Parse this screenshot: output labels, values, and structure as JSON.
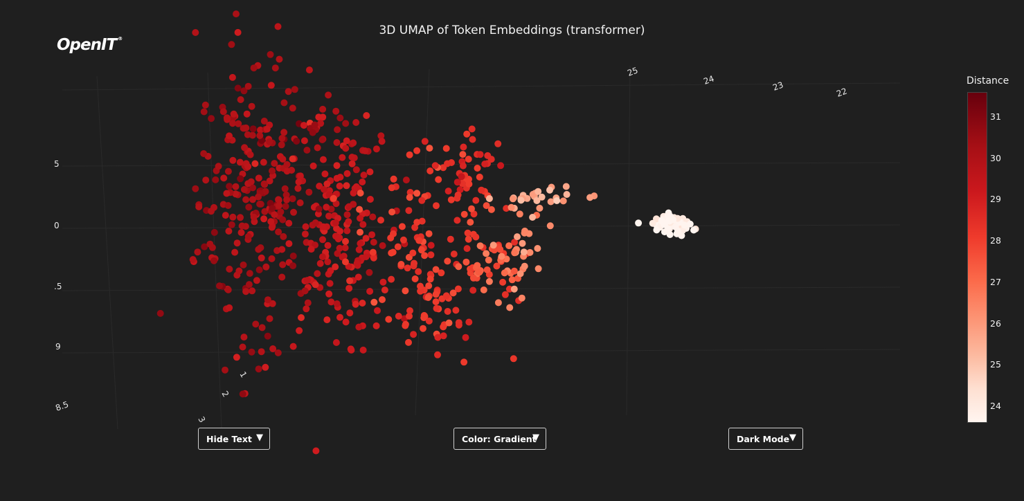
{
  "chart_data": {
    "type": "scatter",
    "title": "3D UMAP of Token Embeddings (transformer)",
    "colorbar": {
      "title": "Distance",
      "range": [
        23.6,
        31.6
      ],
      "ticks": [
        "31",
        "30",
        "29",
        "28",
        "27",
        "26",
        "25",
        "24"
      ],
      "colorscale": [
        "#fff5f0",
        "#fee0d2",
        "#fcbba1",
        "#fc9272",
        "#fb6a4a",
        "#ef3b2c",
        "#cb181d",
        "#a50f15",
        "#67000d"
      ]
    },
    "axis_ticks": {
      "top": [
        "25",
        "24",
        "23",
        "22"
      ],
      "left": [
        "5",
        "0",
        ".5",
        "9",
        "8.5"
      ],
      "bottom": [
        "1",
        "2",
        "3"
      ]
    },
    "clusters": [
      {
        "cx": 3.0,
        "cy": 7.3,
        "sx": 0.55,
        "sy": 2.1,
        "n": 230,
        "dist": 30.4
      },
      {
        "cx": 4.6,
        "cy": 6.6,
        "sx": 0.6,
        "sy": 1.6,
        "n": 190,
        "dist": 29.8
      },
      {
        "cx": 4.5,
        "cy": 9.5,
        "sx": 0.45,
        "sy": 0.35,
        "n": 16,
        "dist": 30.6
      },
      {
        "cx": 7.1,
        "cy": 8.3,
        "sx": 0.5,
        "sy": 0.55,
        "n": 48,
        "dist": 29.0
      },
      {
        "cx": 6.5,
        "cy": 5.6,
        "sx": 0.85,
        "sy": 1.3,
        "n": 120,
        "dist": 28.6
      },
      {
        "cx": 7.8,
        "cy": 5.5,
        "sx": 0.3,
        "sy": 0.35,
        "n": 28,
        "dist": 27.9
      },
      {
        "cx": 8.3,
        "cy": 5.7,
        "sx": 0.25,
        "sy": 0.7,
        "n": 28,
        "dist": 26.8
      },
      {
        "cx": 8.85,
        "cy": 7.35,
        "sx": 0.55,
        "sy": 0.18,
        "n": 28,
        "dist": 26.0
      },
      {
        "cx": 6.7,
        "cy": 4.0,
        "sx": 0.35,
        "sy": 0.45,
        "n": 22,
        "dist": 28.8
      },
      {
        "cx": 11.4,
        "cy": 6.6,
        "sx": 0.18,
        "sy": 0.14,
        "n": 60,
        "dist": 23.8
      }
    ]
  },
  "controls": {
    "text_toggle": "Hide Text",
    "color_mode": "Color: Gradient",
    "theme": "Dark Mode",
    "arrow": "▼"
  },
  "logo": {
    "text": "OpenIT",
    "mark": "®"
  }
}
